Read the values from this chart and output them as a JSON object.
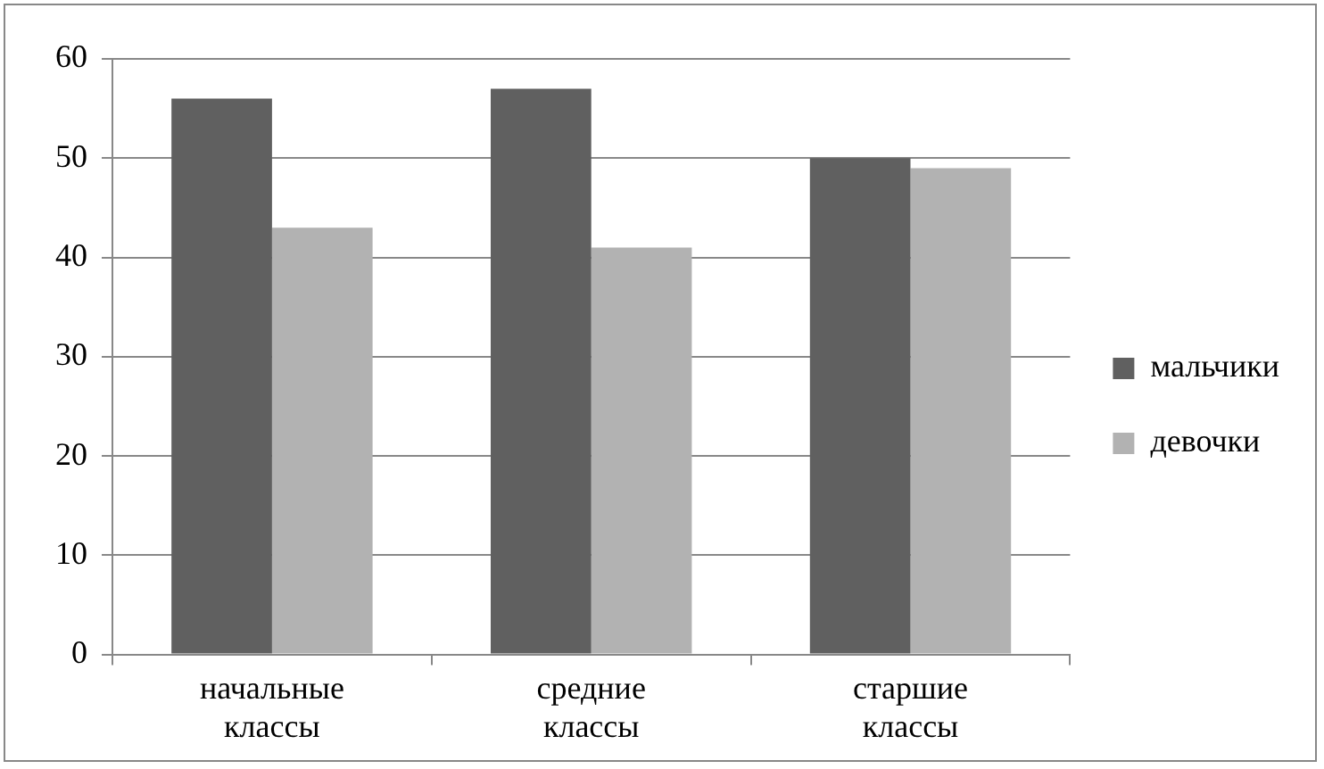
{
  "chart_data": {
    "type": "bar",
    "categories": [
      "начальные классы",
      "средние классы",
      "старшие классы"
    ],
    "series": [
      {
        "name": "мальчики",
        "color": "#606060",
        "values": [
          56,
          57,
          50
        ]
      },
      {
        "name": "девочки",
        "color": "#b2b2b2",
        "values": [
          43,
          41,
          49
        ]
      }
    ],
    "ylim": [
      0,
      60
    ],
    "yticks": [
      0,
      10,
      20,
      30,
      40,
      50,
      60
    ],
    "grid": "y",
    "legend": "right"
  }
}
